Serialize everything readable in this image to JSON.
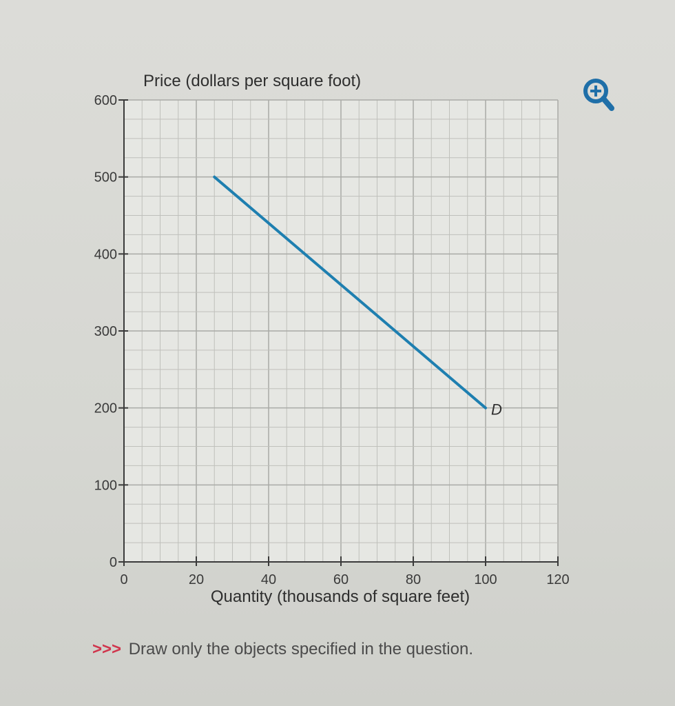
{
  "zoom": {
    "icon": "zoom-in-icon",
    "color": "#1f6fa8"
  },
  "instruction": {
    "prompt": ">>>",
    "text": "Draw only the objects specified in the question."
  },
  "chart_data": {
    "type": "line",
    "title": "",
    "xlabel": "Quantity (thousands of square feet)",
    "ylabel": "Price (dollars per square foot)",
    "xlim": [
      0,
      120
    ],
    "ylim": [
      0,
      600
    ],
    "x_ticks": [
      0,
      20,
      40,
      60,
      80,
      100,
      120
    ],
    "y_ticks": [
      0,
      100,
      200,
      300,
      400,
      500,
      600
    ],
    "x_minor_step": 5,
    "y_minor_step": 25,
    "grid": true,
    "series": [
      {
        "name": "D",
        "color": "#1e7fb0",
        "points": [
          {
            "x": 25,
            "y": 500
          },
          {
            "x": 100,
            "y": 200
          }
        ]
      }
    ]
  }
}
